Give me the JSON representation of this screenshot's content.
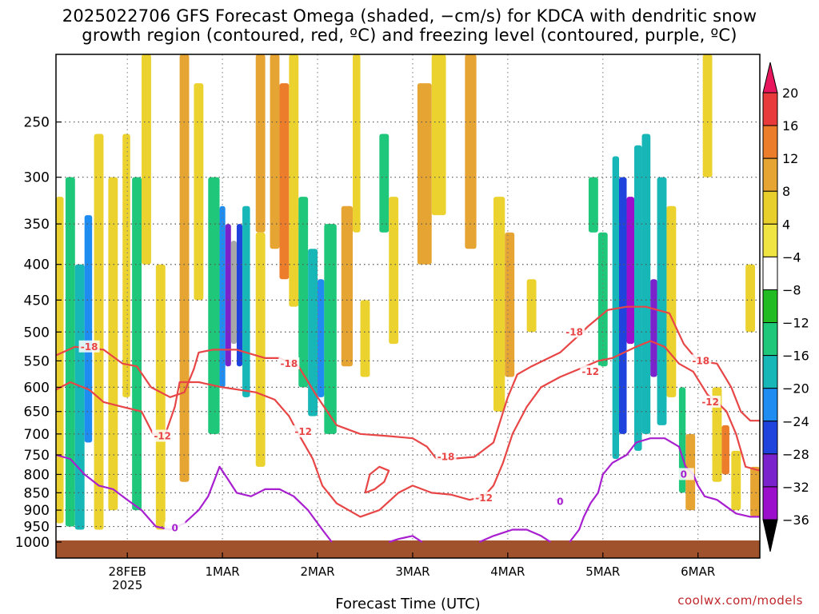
{
  "title_line1": "2025022706 GFS Forecast Omega (shaded, −cm/s) for KDCA with dendritic snow",
  "title_line2": "growth region (contoured, red, ºC) and freezing level (contoured, purple, ºC)",
  "xlabel": "Forecast Time (UTC)",
  "credit": "coolwx.com/models",
  "chart_data": {
    "type": "heatmap",
    "title": "2025022706 GFS Forecast Omega (shaded, −cm/s) for KDCA with dendritic snow growth region (contoured, red, ºC) and freezing level (contoured, purple, ºC)",
    "xlabel": "Forecast Time (UTC)",
    "ylabel": "",
    "y_axis": {
      "type": "pressure",
      "inverted": true,
      "range": [
        1000,
        200
      ],
      "ticks": [
        250,
        300,
        350,
        400,
        450,
        500,
        550,
        600,
        650,
        700,
        750,
        800,
        850,
        900,
        950,
        1000
      ]
    },
    "x_axis": {
      "range": [
        0,
        7.4
      ],
      "units": "days after 27 Feb 2025 06 UTC",
      "ticks": [
        {
          "day": 0.75,
          "label": "28FEB",
          "sub": "2025"
        },
        {
          "day": 1.75,
          "label": "1MAR"
        },
        {
          "day": 2.75,
          "label": "2MAR"
        },
        {
          "day": 3.75,
          "label": "3MAR"
        },
        {
          "day": 4.75,
          "label": "4MAR"
        },
        {
          "day": 5.75,
          "label": "5MAR"
        },
        {
          "day": 6.75,
          "label": "6MAR"
        }
      ]
    },
    "grid": true,
    "colorbar": {
      "levels": [
        20,
        16,
        12,
        8,
        4,
        -4,
        -8,
        -12,
        -16,
        -20,
        -24,
        -28,
        -32,
        -36
      ],
      "colors": [
        "#e8175d",
        "#e83a3a",
        "#ec7d2a",
        "#e6a532",
        "#e8cf2c",
        "#f0e442",
        "#ffffff",
        "#22bb22",
        "#1ec77a",
        "#17b7b7",
        "#1e8cf0",
        "#1f44dd",
        "#7a22cc",
        "#9b0fcc",
        "#a8a8a8",
        "#000000"
      ]
    },
    "omega_cells": [
      {
        "t0": 0.0,
        "t1": 0.08,
        "p0": 320,
        "p1": 940,
        "v": 6
      },
      {
        "t0": 0.1,
        "t1": 0.2,
        "p0": 300,
        "p1": 950,
        "v": -9
      },
      {
        "t0": 0.2,
        "t1": 0.3,
        "p0": 400,
        "p1": 960,
        "v": -14
      },
      {
        "t0": 0.3,
        "t1": 0.38,
        "p0": 340,
        "p1": 720,
        "v": -18
      },
      {
        "t0": 0.4,
        "t1": 0.5,
        "p0": 260,
        "p1": 960,
        "v": 6
      },
      {
        "t0": 0.55,
        "t1": 0.65,
        "p0": 300,
        "p1": 900,
        "v": 5
      },
      {
        "t0": 0.7,
        "t1": 0.78,
        "p0": 260,
        "p1": 620,
        "v": 5
      },
      {
        "t0": 0.8,
        "t1": 0.9,
        "p0": 300,
        "p1": 900,
        "v": -9
      },
      {
        "t0": 0.9,
        "t1": 1.0,
        "p0": 200,
        "p1": 400,
        "v": 6
      },
      {
        "t0": 1.05,
        "t1": 1.15,
        "p0": 400,
        "p1": 960,
        "v": 6
      },
      {
        "t0": 1.3,
        "t1": 1.4,
        "p0": 200,
        "p1": 820,
        "v": 9
      },
      {
        "t0": 1.45,
        "t1": 1.55,
        "p0": 220,
        "p1": 450,
        "v": 5
      },
      {
        "t0": 1.6,
        "t1": 1.72,
        "p0": 300,
        "p1": 700,
        "v": -10
      },
      {
        "t0": 1.72,
        "t1": 1.78,
        "p0": 330,
        "p1": 600,
        "v": -18
      },
      {
        "t0": 1.78,
        "t1": 1.84,
        "p0": 350,
        "p1": 560,
        "v": -27
      },
      {
        "t0": 1.84,
        "t1": 1.9,
        "p0": 370,
        "p1": 520,
        "v": -33
      },
      {
        "t0": 1.9,
        "t1": 1.96,
        "p0": 350,
        "p1": 560,
        "v": -22
      },
      {
        "t0": 1.96,
        "t1": 2.04,
        "p0": 330,
        "p1": 620,
        "v": -14
      },
      {
        "t0": 2.1,
        "t1": 2.2,
        "p0": 200,
        "p1": 360,
        "v": 10
      },
      {
        "t0": 2.1,
        "t1": 2.2,
        "p0": 360,
        "p1": 780,
        "v": 5
      },
      {
        "t0": 2.25,
        "t1": 2.35,
        "p0": 200,
        "p1": 380,
        "v": 9
      },
      {
        "t0": 2.35,
        "t1": 2.45,
        "p0": 220,
        "p1": 420,
        "v": 13
      },
      {
        "t0": 2.45,
        "t1": 2.55,
        "p0": 200,
        "p1": 460,
        "v": 6
      },
      {
        "t0": 2.55,
        "t1": 2.65,
        "p0": 320,
        "p1": 600,
        "v": -9
      },
      {
        "t0": 2.65,
        "t1": 2.75,
        "p0": 380,
        "p1": 660,
        "v": -14
      },
      {
        "t0": 2.75,
        "t1": 2.82,
        "p0": 420,
        "p1": 620,
        "v": -18
      },
      {
        "t0": 2.82,
        "t1": 2.95,
        "p0": 350,
        "p1": 700,
        "v": -10
      },
      {
        "t0": 3.0,
        "t1": 3.12,
        "p0": 330,
        "p1": 560,
        "v": 10
      },
      {
        "t0": 3.12,
        "t1": 3.2,
        "p0": 200,
        "p1": 360,
        "v": 6
      },
      {
        "t0": 3.2,
        "t1": 3.3,
        "p0": 450,
        "p1": 580,
        "v": 6
      },
      {
        "t0": 3.4,
        "t1": 3.5,
        "p0": 260,
        "p1": 360,
        "v": -9
      },
      {
        "t0": 3.5,
        "t1": 3.6,
        "p0": 320,
        "p1": 520,
        "v": 5
      },
      {
        "t0": 3.8,
        "t1": 3.95,
        "p0": 220,
        "p1": 400,
        "v": 9
      },
      {
        "t0": 3.95,
        "t1": 4.1,
        "p0": 200,
        "p1": 340,
        "v": 6
      },
      {
        "t0": 4.3,
        "t1": 4.42,
        "p0": 200,
        "p1": 380,
        "v": 9
      },
      {
        "t0": 4.6,
        "t1": 4.72,
        "p0": 320,
        "p1": 650,
        "v": 6
      },
      {
        "t0": 4.72,
        "t1": 4.82,
        "p0": 360,
        "p1": 580,
        "v": 9
      },
      {
        "t0": 4.95,
        "t1": 5.05,
        "p0": 420,
        "p1": 500,
        "v": 5
      },
      {
        "t0": 5.6,
        "t1": 5.7,
        "p0": 300,
        "p1": 360,
        "v": -9
      },
      {
        "t0": 5.7,
        "t1": 5.8,
        "p0": 360,
        "p1": 560,
        "v": -10
      },
      {
        "t0": 5.85,
        "t1": 5.92,
        "p0": 280,
        "p1": 760,
        "v": -14
      },
      {
        "t0": 5.92,
        "t1": 6.0,
        "p0": 300,
        "p1": 700,
        "v": -22
      },
      {
        "t0": 6.0,
        "t1": 6.08,
        "p0": 320,
        "p1": 520,
        "v": -28
      },
      {
        "t0": 6.08,
        "t1": 6.16,
        "p0": 270,
        "p1": 740,
        "v": -15
      },
      {
        "t0": 6.16,
        "t1": 6.25,
        "p0": 260,
        "p1": 700,
        "v": -13
      },
      {
        "t0": 6.25,
        "t1": 6.32,
        "p0": 420,
        "p1": 580,
        "v": -27
      },
      {
        "t0": 6.32,
        "t1": 6.42,
        "p0": 300,
        "p1": 680,
        "v": -14
      },
      {
        "t0": 6.42,
        "t1": 6.52,
        "p0": 330,
        "p1": 620,
        "v": 5
      },
      {
        "t0": 6.55,
        "t1": 6.62,
        "p0": 600,
        "p1": 850,
        "v": -9
      },
      {
        "t0": 6.62,
        "t1": 6.72,
        "p0": 700,
        "p1": 900,
        "v": 9
      },
      {
        "t0": 6.8,
        "t1": 6.9,
        "p0": 200,
        "p1": 300,
        "v": 6
      },
      {
        "t0": 6.9,
        "t1": 7.0,
        "p0": 600,
        "p1": 820,
        "v": 6
      },
      {
        "t0": 7.0,
        "t1": 7.08,
        "p0": 680,
        "p1": 800,
        "v": 13
      },
      {
        "t0": 7.1,
        "t1": 7.2,
        "p0": 740,
        "p1": 900,
        "v": 6
      },
      {
        "t0": 7.25,
        "t1": 7.35,
        "p0": 400,
        "p1": 500,
        "v": 6
      },
      {
        "t0": 7.3,
        "t1": 7.4,
        "p0": 780,
        "p1": 920,
        "v": 9
      }
    ],
    "contours": [
      {
        "name": "-18",
        "color": "#e84646",
        "labels": [
          {
            "t": 0.35,
            "p": 525
          },
          {
            "t": 2.45,
            "p": 555
          },
          {
            "t": 4.1,
            "p": 755
          },
          {
            "t": 5.45,
            "p": 500
          },
          {
            "t": 6.78,
            "p": 550
          }
        ],
        "points": [
          [
            0.0,
            540
          ],
          [
            0.2,
            525
          ],
          [
            0.5,
            530
          ],
          [
            0.7,
            555
          ],
          [
            0.85,
            560
          ],
          [
            1.0,
            600
          ],
          [
            1.2,
            620
          ],
          [
            1.35,
            610
          ],
          [
            1.45,
            565
          ],
          [
            1.5,
            535
          ],
          [
            1.65,
            530
          ],
          [
            1.9,
            530
          ],
          [
            2.2,
            545
          ],
          [
            2.35,
            545
          ],
          [
            2.55,
            560
          ],
          [
            2.75,
            620
          ],
          [
            2.95,
            680
          ],
          [
            3.2,
            700
          ],
          [
            3.5,
            705
          ],
          [
            3.75,
            710
          ],
          [
            3.9,
            730
          ],
          [
            4.0,
            760
          ],
          [
            4.15,
            760
          ],
          [
            4.4,
            755
          ],
          [
            4.6,
            720
          ],
          [
            4.75,
            620
          ],
          [
            4.85,
            575
          ],
          [
            5.0,
            560
          ],
          [
            5.3,
            535
          ],
          [
            5.5,
            505
          ],
          [
            5.6,
            490
          ],
          [
            5.8,
            465
          ],
          [
            6.0,
            460
          ],
          [
            6.2,
            460
          ],
          [
            6.45,
            470
          ],
          [
            6.6,
            520
          ],
          [
            6.75,
            550
          ],
          [
            6.95,
            555
          ],
          [
            7.1,
            600
          ],
          [
            7.2,
            650
          ],
          [
            7.3,
            670
          ],
          [
            7.4,
            670
          ]
        ]
      },
      {
        "name": "-12",
        "color": "#e84646",
        "labels": [
          {
            "t": 1.12,
            "p": 705
          },
          {
            "t": 2.6,
            "p": 695
          },
          {
            "t": 4.5,
            "p": 865
          },
          {
            "t": 5.62,
            "p": 570
          },
          {
            "t": 6.88,
            "p": 630
          }
        ],
        "points": [
          [
            0.0,
            605
          ],
          [
            0.15,
            590
          ],
          [
            0.35,
            605
          ],
          [
            0.5,
            630
          ],
          [
            0.7,
            640
          ],
          [
            0.9,
            650
          ],
          [
            1.02,
            700
          ],
          [
            1.15,
            700
          ],
          [
            1.25,
            640
          ],
          [
            1.3,
            590
          ],
          [
            1.5,
            590
          ],
          [
            1.75,
            600
          ],
          [
            2.1,
            610
          ],
          [
            2.3,
            625
          ],
          [
            2.45,
            660
          ],
          [
            2.55,
            700
          ],
          [
            2.7,
            760
          ],
          [
            2.8,
            830
          ],
          [
            2.95,
            880
          ],
          [
            3.2,
            920
          ],
          [
            3.4,
            900
          ],
          [
            3.6,
            850
          ],
          [
            3.75,
            830
          ],
          [
            3.95,
            850
          ],
          [
            4.15,
            855
          ],
          [
            4.35,
            870
          ],
          [
            4.5,
            860
          ],
          [
            4.6,
            830
          ],
          [
            4.7,
            770
          ],
          [
            4.8,
            700
          ],
          [
            4.95,
            640
          ],
          [
            5.1,
            600
          ],
          [
            5.3,
            580
          ],
          [
            5.5,
            565
          ],
          [
            5.7,
            550
          ],
          [
            5.85,
            545
          ],
          [
            6.1,
            525
          ],
          [
            6.25,
            515
          ],
          [
            6.4,
            525
          ],
          [
            6.55,
            555
          ],
          [
            6.7,
            570
          ],
          [
            6.85,
            615
          ],
          [
            6.95,
            630
          ],
          [
            7.05,
            650
          ],
          [
            7.15,
            700
          ],
          [
            7.25,
            780
          ],
          [
            7.4,
            790
          ]
        ]
      },
      {
        "name": "-12b",
        "color": "#e84646",
        "labels": [],
        "points": [
          [
            3.25,
            850
          ],
          [
            3.3,
            800
          ],
          [
            3.4,
            780
          ],
          [
            3.5,
            790
          ],
          [
            3.45,
            820
          ],
          [
            3.35,
            840
          ],
          [
            3.25,
            850
          ]
        ]
      },
      {
        "name": "0",
        "color": "#a81fd0",
        "labels": [
          {
            "t": 1.25,
            "p": 955
          },
          {
            "t": 5.3,
            "p": 875
          },
          {
            "t": 6.6,
            "p": 800
          }
        ],
        "points": [
          [
            0.0,
            750
          ],
          [
            0.15,
            760
          ],
          [
            0.3,
            800
          ],
          [
            0.45,
            830
          ],
          [
            0.6,
            840
          ],
          [
            0.75,
            870
          ],
          [
            0.9,
            900
          ],
          [
            1.05,
            950
          ],
          [
            1.2,
            960
          ],
          [
            1.35,
            940
          ],
          [
            1.5,
            900
          ],
          [
            1.6,
            860
          ],
          [
            1.72,
            780
          ],
          [
            1.8,
            810
          ],
          [
            1.9,
            850
          ],
          [
            2.05,
            860
          ],
          [
            2.2,
            840
          ],
          [
            2.35,
            840
          ],
          [
            2.5,
            860
          ],
          [
            2.65,
            900
          ],
          [
            2.8,
            960
          ],
          [
            2.9,
            1000
          ]
        ]
      },
      {
        "name": "0b",
        "color": "#a81fd0",
        "labels": [],
        "points": [
          [
            3.5,
            1000
          ],
          [
            3.6,
            990
          ],
          [
            3.75,
            980
          ],
          [
            3.85,
            1000
          ]
        ]
      },
      {
        "name": "0c",
        "color": "#a81fd0",
        "labels": [],
        "points": [
          [
            4.45,
            1000
          ],
          [
            4.6,
            980
          ],
          [
            4.8,
            960
          ],
          [
            4.95,
            960
          ],
          [
            5.1,
            980
          ],
          [
            5.2,
            1000
          ]
        ]
      },
      {
        "name": "0d",
        "color": "#a81fd0",
        "labels": [],
        "points": [
          [
            5.4,
            1000
          ],
          [
            5.5,
            960
          ],
          [
            5.55,
            920
          ],
          [
            5.62,
            880
          ],
          [
            5.7,
            850
          ],
          [
            5.75,
            800
          ],
          [
            5.85,
            770
          ],
          [
            6.0,
            750
          ],
          [
            6.1,
            720
          ],
          [
            6.25,
            710
          ],
          [
            6.4,
            710
          ],
          [
            6.55,
            730
          ],
          [
            6.62,
            780
          ],
          [
            6.7,
            800
          ],
          [
            6.75,
            830
          ],
          [
            6.82,
            860
          ],
          [
            6.95,
            870
          ],
          [
            7.05,
            890
          ],
          [
            7.15,
            910
          ],
          [
            7.3,
            920
          ],
          [
            7.4,
            920
          ]
        ]
      },
      {
        "name": "0e",
        "color": "#a81fd0",
        "labels": [],
        "points": [
          [
            5.25,
            870
          ],
          [
            5.33,
            870
          ],
          [
            5.33,
            880
          ]
        ]
      }
    ]
  }
}
